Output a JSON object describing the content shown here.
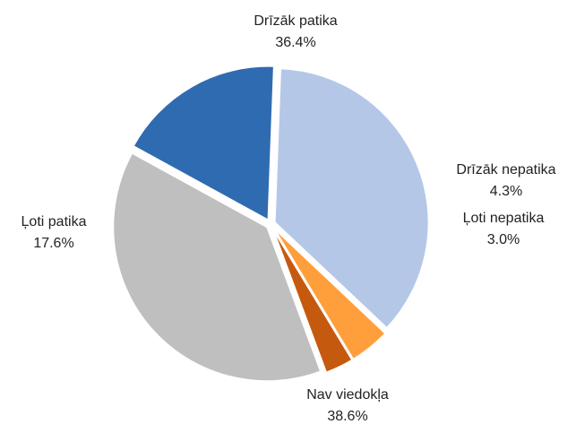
{
  "chart_data": {
    "type": "pie",
    "categories": [
      "Ļoti patika",
      "Drīzāk patika",
      "Drīzāk nepatika",
      "Ļoti nepatika",
      "Nav viedokļa"
    ],
    "values": [
      17.6,
      36.4,
      4.3,
      3.0,
      38.6
    ],
    "value_labels": [
      "17.6%",
      "36.4%",
      "4.3%",
      "3.0%",
      "38.6%"
    ],
    "colors": [
      "#2f6bb0",
      "#b4c7e7",
      "#ff9f3c",
      "#c55a0f",
      "#bfbfbf"
    ]
  }
}
